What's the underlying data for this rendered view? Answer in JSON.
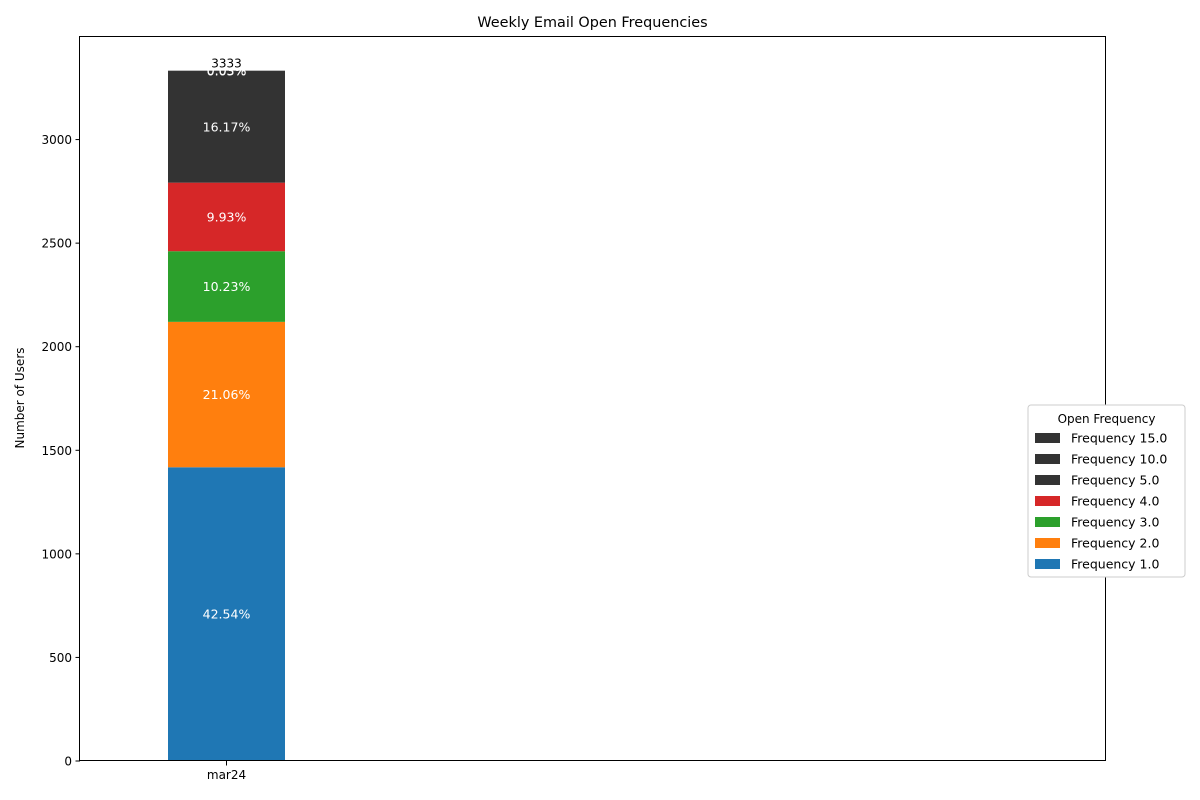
{
  "chart_data": {
    "type": "bar",
    "stacked": true,
    "title": "Weekly Email Open Frequencies",
    "xlabel": "",
    "ylabel": "Number of Users",
    "categories": [
      "mar24"
    ],
    "ylim": [
      0,
      3500
    ],
    "yticks": [
      0,
      500,
      1000,
      1500,
      2000,
      2500,
      3000
    ],
    "grid": false,
    "total_label": "3333",
    "legend": {
      "title": "Open Frequency",
      "placement": "center-right",
      "order": [
        "Frequency 15.0",
        "Frequency 10.0",
        "Frequency 5.0",
        "Frequency 4.0",
        "Frequency 3.0",
        "Frequency 2.0",
        "Frequency 1.0"
      ]
    },
    "series": [
      {
        "name": "Frequency 1.0",
        "values": [
          1418
        ],
        "label": "42.54%",
        "color": "#1f77b4"
      },
      {
        "name": "Frequency 2.0",
        "values": [
          702
        ],
        "label": "21.06%",
        "color": "#ff7f0e"
      },
      {
        "name": "Frequency 3.0",
        "values": [
          341
        ],
        "label": "10.23%",
        "color": "#2ca02c"
      },
      {
        "name": "Frequency 4.0",
        "values": [
          331
        ],
        "label": "9.93%",
        "color": "#d62728"
      },
      {
        "name": "Frequency 5.0",
        "values": [
          539
        ],
        "label": "16.17%",
        "color": "#333333"
      },
      {
        "name": "Frequency 10.0",
        "values": [
          1
        ],
        "label": "0.03%",
        "color": "#333333"
      },
      {
        "name": "Frequency 15.0",
        "values": [
          1
        ],
        "label": "0.03%",
        "color": "#333333"
      }
    ]
  }
}
